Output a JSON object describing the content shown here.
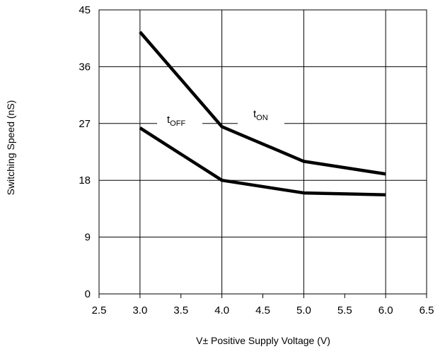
{
  "chart_data": {
    "type": "line",
    "title": "",
    "xlabel": "V±  Positive Supply Voltage (V)",
    "ylabel": "Switching Speed (nS)",
    "xlim": [
      2.5,
      6.5
    ],
    "ylim": [
      0,
      45
    ],
    "x_ticks": [
      "2.5",
      "3.0",
      "3.5",
      "4.0",
      "4.5",
      "5.0",
      "5.5",
      "6.0",
      "6.5"
    ],
    "y_ticks": [
      "0",
      "9",
      "18",
      "27",
      "36",
      "45"
    ],
    "grid": true,
    "series": [
      {
        "name": "tON",
        "name_main": "t",
        "name_sub": "ON",
        "x": [
          3.0,
          4.0,
          5.0,
          6.0
        ],
        "values": [
          41.5,
          26.5,
          21.0,
          19.0
        ]
      },
      {
        "name": "tOFF",
        "name_main": "t",
        "name_sub": "OFF",
        "x": [
          3.0,
          4.0,
          5.0,
          6.0
        ],
        "values": [
          26.3,
          18.0,
          16.0,
          15.7
        ]
      }
    ],
    "line_color": "#000000"
  }
}
